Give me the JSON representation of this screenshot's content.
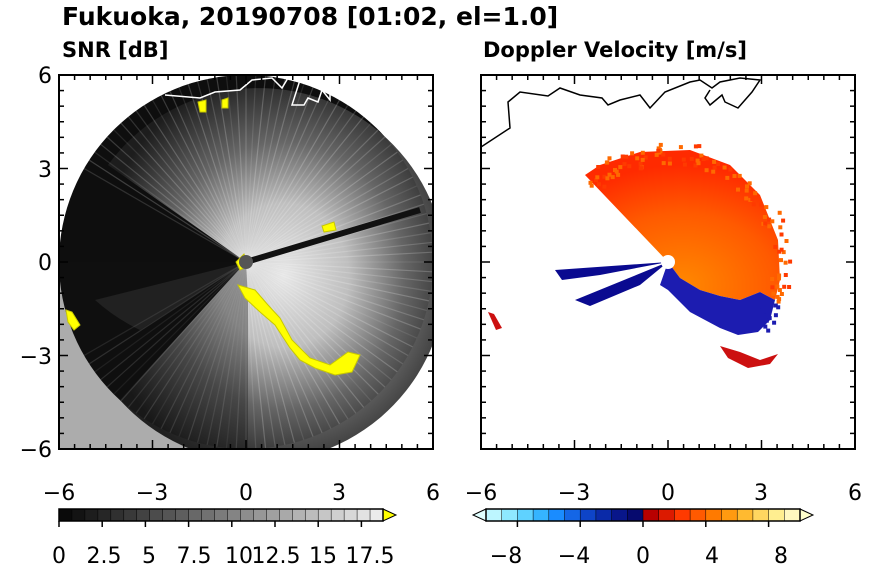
{
  "title": "Fukuoka, 20190708 [01:02, el=1.0]",
  "chart_data": [
    {
      "type": "heatmap",
      "subtitle": "SNR [dB]",
      "xlim": [
        -6,
        6
      ],
      "ylim": [
        -6,
        6
      ],
      "xticks": [
        "−6",
        "−3",
        "0",
        "3",
        "6"
      ],
      "yticks": [
        "6",
        "3",
        "0",
        "−3",
        "−6"
      ],
      "colorbar": {
        "min": 0,
        "max": 18.75,
        "levels": 25,
        "colormap": "gray",
        "over_color": "#ffff00",
        "ticks": [
          "0",
          "2.5",
          "5",
          "7.5",
          "10",
          "12.5",
          "15",
          "17.5"
        ],
        "tick_values": [
          0,
          2.5,
          5,
          7.5,
          10,
          12.5,
          15,
          17.5
        ]
      },
      "range_ring_radius": 6,
      "radar_center": [
        0,
        0
      ]
    },
    {
      "type": "heatmap",
      "subtitle": "Doppler Velocity [m/s]",
      "xlim": [
        -6,
        6
      ],
      "ylim": [
        -6,
        6
      ],
      "xticks": [
        "−6",
        "−3",
        "0",
        "3",
        "6"
      ],
      "colorbar": {
        "min": -10,
        "max": 10,
        "levels": 20,
        "colormap": "blue-white-red",
        "under_color": "#e0ffff",
        "over_color": "#ffffcc",
        "ticks": [
          "−8",
          "−4",
          "0",
          "4",
          "8"
        ],
        "tick_values": [
          -8,
          -4,
          0,
          4,
          8
        ]
      },
      "radar_center": [
        0,
        0
      ]
    }
  ]
}
